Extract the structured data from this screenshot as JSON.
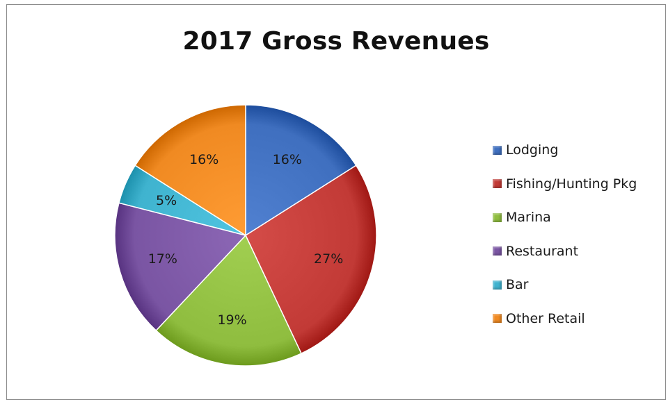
{
  "chart_data": {
    "type": "pie",
    "title": "2017 Gross Revenues",
    "categories": [
      "Lodging",
      "Fishing/Hunting Pkg",
      "Marina",
      "Restaurant",
      "Bar",
      "Other Retail"
    ],
    "values": [
      16,
      27,
      19,
      17,
      5,
      16
    ],
    "labels": [
      "16%",
      "27%",
      "19%",
      "17%",
      "5%",
      "16%"
    ],
    "colors": [
      "#3f6fbf",
      "#c23a36",
      "#8fbd3f",
      "#7a55a3",
      "#3fb3cf",
      "#f08a22"
    ],
    "legend_position": "right"
  }
}
